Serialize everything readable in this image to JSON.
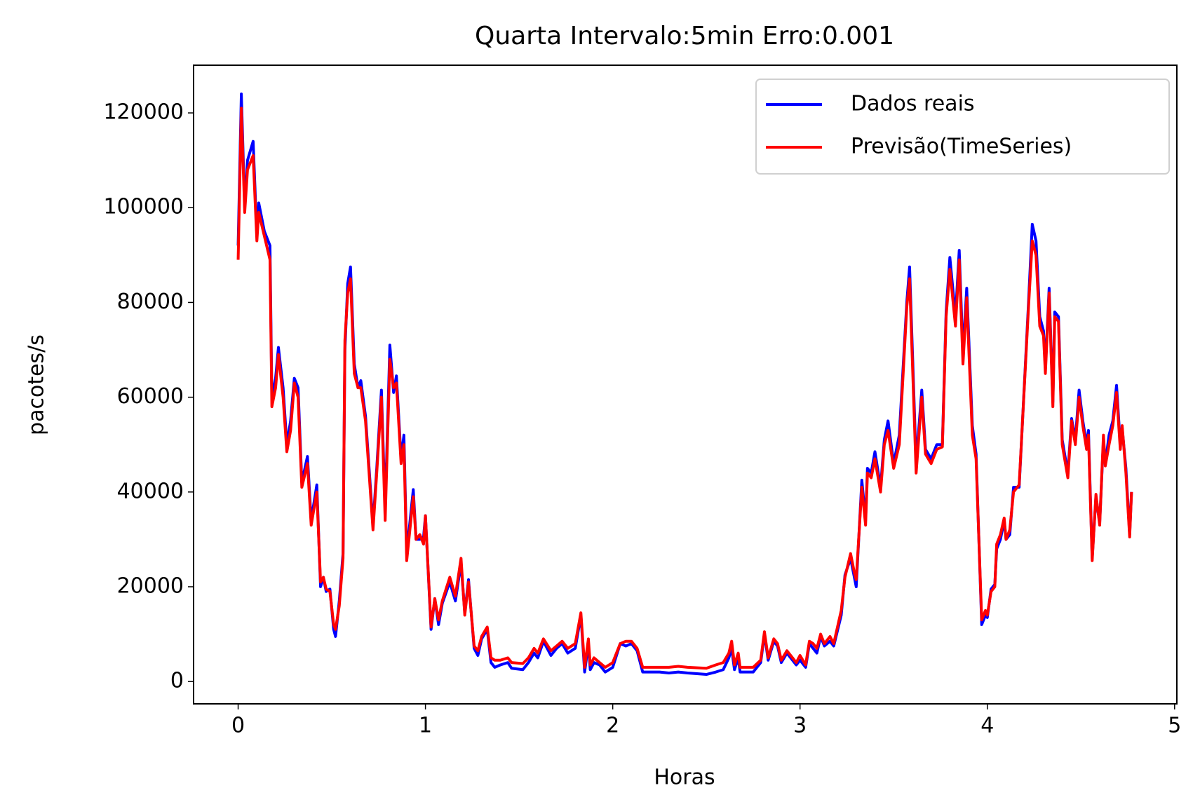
{
  "chart_data": {
    "type": "line",
    "title": "Quarta Intervalo:5min Erro:0.001",
    "xlabel": "Horas",
    "ylabel": "pacotes/s",
    "x": [
      0,
      0.017,
      0.035,
      0.05,
      0.08,
      0.1,
      0.11,
      0.14,
      0.17,
      0.18,
      0.2,
      0.215,
      0.24,
      0.26,
      0.28,
      0.3,
      0.32,
      0.34,
      0.37,
      0.39,
      0.42,
      0.44,
      0.455,
      0.47,
      0.49,
      0.51,
      0.52,
      0.54,
      0.56,
      0.57,
      0.585,
      0.6,
      0.62,
      0.64,
      0.655,
      0.68,
      0.72,
      0.74,
      0.765,
      0.785,
      0.81,
      0.83,
      0.845,
      0.87,
      0.885,
      0.9,
      0.935,
      0.95,
      0.97,
      0.99,
      1.0,
      1.03,
      1.05,
      1.07,
      1.09,
      1.13,
      1.16,
      1.19,
      1.21,
      1.23,
      1.26,
      1.28,
      1.3,
      1.33,
      1.35,
      1.37,
      1.4,
      1.44,
      1.46,
      1.52,
      1.55,
      1.58,
      1.6,
      1.63,
      1.67,
      1.7,
      1.73,
      1.76,
      1.8,
      1.83,
      1.85,
      1.87,
      1.88,
      1.9,
      1.93,
      1.96,
      2.0,
      2.04,
      2.07,
      2.1,
      2.13,
      2.16,
      2.25,
      2.3,
      2.35,
      2.4,
      2.5,
      2.55,
      2.59,
      2.62,
      2.635,
      2.65,
      2.67,
      2.68,
      2.75,
      2.79,
      2.81,
      2.83,
      2.86,
      2.88,
      2.9,
      2.93,
      2.98,
      3.0,
      3.03,
      3.05,
      3.07,
      3.09,
      3.11,
      3.13,
      3.16,
      3.18,
      3.22,
      3.24,
      3.27,
      3.29,
      3.3,
      3.33,
      3.35,
      3.36,
      3.38,
      3.4,
      3.43,
      3.45,
      3.47,
      3.5,
      3.53,
      3.57,
      3.585,
      3.62,
      3.65,
      3.67,
      3.7,
      3.73,
      3.76,
      3.78,
      3.8,
      3.83,
      3.85,
      3.87,
      3.89,
      3.92,
      3.94,
      3.97,
      3.99,
      4.0,
      4.02,
      4.04,
      4.05,
      4.07,
      4.09,
      4.1,
      4.12,
      4.14,
      4.17,
      4.22,
      4.24,
      4.26,
      4.28,
      4.3,
      4.31,
      4.33,
      4.35,
      4.36,
      4.38,
      4.4,
      4.43,
      4.45,
      4.47,
      4.49,
      4.51,
      4.53,
      4.54,
      4.56,
      4.58,
      4.6,
      4.62,
      4.63,
      4.65,
      4.67,
      4.69,
      4.71,
      4.72,
      4.74,
      4.76,
      4.77
    ],
    "series": [
      {
        "name": "Dados reais",
        "color": "#0000ff",
        "values": [
          92000,
          124000,
          100000,
          110000,
          114000,
          94000,
          101000,
          95000,
          92000,
          60000,
          64000,
          70500,
          62000,
          50000,
          55000,
          64000,
          62000,
          42000,
          47500,
          34000,
          41500,
          20000,
          22000,
          19000,
          19500,
          11000,
          9500,
          17000,
          27000,
          70000,
          84000,
          87500,
          67000,
          62000,
          63500,
          56000,
          33000,
          45000,
          61500,
          36000,
          71000,
          61000,
          64500,
          47000,
          52000,
          27000,
          40500,
          30000,
          30000,
          30500,
          35000,
          11000,
          17500,
          12000,
          16500,
          21000,
          17000,
          25000,
          14500,
          21500,
          7000,
          5500,
          9000,
          11000,
          4000,
          3000,
          3500,
          4000,
          2800,
          2500,
          4000,
          6000,
          5000,
          8500,
          5500,
          7000,
          8000,
          6000,
          7000,
          14000,
          2000,
          8000,
          2500,
          4000,
          3500,
          2000,
          3000,
          8000,
          7500,
          8000,
          6500,
          2000,
          2000,
          1800,
          2000,
          1800,
          1500,
          2000,
          2500,
          5000,
          7000,
          2500,
          5000,
          2000,
          2000,
          4000,
          10000,
          4500,
          8500,
          7500,
          4000,
          6000,
          3500,
          4500,
          3000,
          8000,
          7000,
          6000,
          9500,
          7500,
          8500,
          7500,
          14000,
          22500,
          26000,
          22000,
          20000,
          42500,
          34000,
          45000,
          44000,
          48500,
          41000,
          51000,
          55000,
          46000,
          52000,
          80000,
          87500,
          46000,
          61500,
          49000,
          47000,
          50000,
          50000,
          78000,
          89500,
          77000,
          91000,
          69000,
          83000,
          54000,
          48000,
          12000,
          14000,
          13500,
          19500,
          20500,
          28000,
          30000,
          34000,
          30000,
          31000,
          41000,
          41000,
          80000,
          96500,
          93000,
          77000,
          74000,
          66000,
          83000,
          59000,
          78000,
          77000,
          51000,
          44000,
          55500,
          51000,
          61500,
          55000,
          50000,
          53000,
          26000,
          39000,
          33500,
          51000,
          46000,
          52000,
          55000,
          62500,
          50000,
          53500,
          45000,
          31000,
          40000
        ]
      },
      {
        "name": "Previsão(TimeSeries)",
        "color": "#ff0000",
        "values": [
          89000,
          121000,
          99000,
          108000,
          111000,
          93000,
          99000,
          94000,
          89000,
          58000,
          62000,
          69000,
          60000,
          48500,
          53000,
          63000,
          60000,
          41000,
          46000,
          33000,
          40000,
          21000,
          22000,
          19500,
          19000,
          12000,
          11000,
          16000,
          26000,
          72000,
          82000,
          85000,
          65000,
          62000,
          62000,
          55000,
          32000,
          44000,
          60000,
          34000,
          68000,
          62000,
          63000,
          46000,
          50000,
          25500,
          39000,
          30000,
          31000,
          29000,
          35000,
          11500,
          17500,
          13000,
          17000,
          22000,
          18000,
          26000,
          14000,
          21000,
          7500,
          6500,
          9500,
          11500,
          5000,
          4500,
          4500,
          5000,
          4000,
          3800,
          5000,
          7000,
          6000,
          9000,
          6500,
          7500,
          8500,
          7000,
          8000,
          14500,
          3000,
          9000,
          3500,
          5000,
          4000,
          3000,
          4000,
          8000,
          8500,
          8500,
          7000,
          3000,
          3000,
          3000,
          3200,
          3000,
          2800,
          3500,
          4000,
          6000,
          8500,
          3500,
          6000,
          3000,
          3000,
          4500,
          10500,
          5000,
          9000,
          8000,
          4500,
          6500,
          4000,
          5500,
          3500,
          8500,
          8000,
          7000,
          10000,
          8000,
          9500,
          8000,
          15000,
          22000,
          27000,
          23000,
          21500,
          41000,
          33000,
          44000,
          43000,
          47000,
          40000,
          50000,
          53000,
          45000,
          50000,
          79000,
          85000,
          44000,
          60000,
          48000,
          46000,
          49000,
          49500,
          77000,
          87000,
          75000,
          89000,
          67000,
          81000,
          52000,
          47000,
          13000,
          15000,
          14000,
          19000,
          20000,
          29000,
          31000,
          34500,
          30000,
          32000,
          40000,
          41500,
          79000,
          93000,
          90000,
          75000,
          73000,
          65000,
          82000,
          58000,
          77000,
          76000,
          50000,
          43000,
          55000,
          50000,
          60000,
          54000,
          49000,
          52000,
          25500,
          39500,
          33000,
          52000,
          45500,
          50000,
          54000,
          61000,
          49000,
          54000,
          44000,
          30500,
          40000
        ]
      }
    ],
    "xlim": [
      -0.238,
      5.012
    ],
    "xticks": [
      0,
      1,
      2,
      3,
      4,
      5
    ],
    "ylim": [
      -4710,
      130070
    ],
    "yticks": [
      0,
      20000,
      40000,
      60000,
      80000,
      100000,
      120000
    ],
    "legend": "upper right",
    "grid": false
  }
}
